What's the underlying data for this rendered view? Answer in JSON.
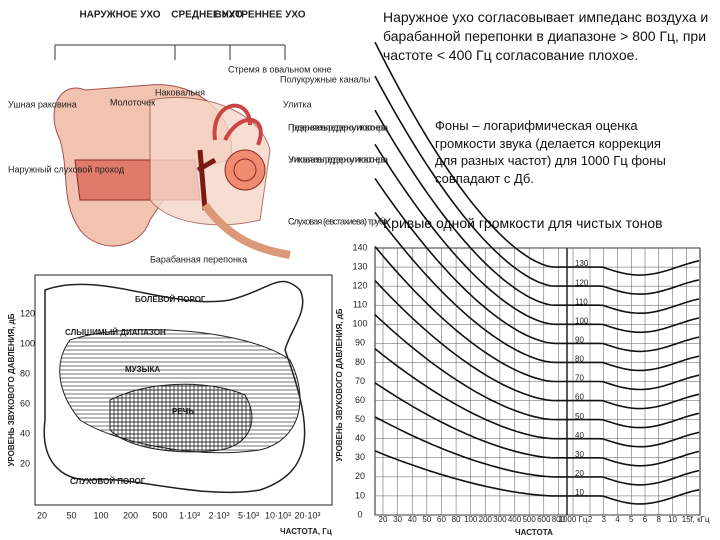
{
  "ear": {
    "headers": [
      "НАРУЖНОЕ УХО",
      "СРЕДНЕЕ УХО",
      "ВНУТРЕННЕЕ УХО"
    ],
    "labels": [
      "Ушная раковина",
      "Наружный слуховой проход",
      "Молоточек",
      "Наковальня",
      "Стремя в овальном окне",
      "Полукружные каналы",
      "Улитка",
      "Предверная ветвь преддверно-улиткового нерва",
      "Улитковая ветвь преддверно-улиткового нерва",
      "Слуховая (евстахиева) труба",
      "Барабанная перепонка"
    ]
  },
  "text": {
    "paragraph_1": "Наружное ухо согласовывает импеданс воздуха и барабанной перепонки в диапазоне > 800 Гц, при частоте < 400 Гц согласование плохое.",
    "paragraph_2": "Фоны – логарифмическая оценка громкости звука (делается коррекция для разных частот) для 1000 Гц фоны совпадают с Дб.",
    "heading": "Кривые одной громкости для чистых тонов"
  },
  "hearing_area": {
    "y_label": "УРОВЕНЬ ЗВУКОВОГО ДАВЛЕНИЯ, дБ",
    "x_label": "ЧАСТОТА, Гц",
    "yticks": [
      120,
      100,
      80,
      60,
      40,
      20
    ],
    "xticks": [
      "20",
      "50",
      "100",
      "200",
      "500",
      "1·10³",
      "2·10³",
      "5·10³",
      "10·10³",
      "20·10³"
    ],
    "regions": [
      "БОЛЕВОЙ ПОРОГ",
      "СЛЫШИМЫЙ ДИАПАЗОН",
      "МУЗЫКА",
      "РЕЧЬ",
      "СЛУХОВОЙ ПОРОГ"
    ]
  },
  "loudness": {
    "y_label": "УРОВЕНЬ ЗВУКОВОГО ДАВЛЕНИЯ, дБ",
    "x_label": "ЧАСТОТА",
    "yticks": [
      140,
      130,
      120,
      110,
      100,
      90,
      80,
      70,
      60,
      50,
      40,
      30,
      20,
      10,
      0
    ],
    "curve_labels": [
      130,
      120,
      110,
      100,
      90,
      80,
      70,
      60,
      50,
      40,
      30,
      20,
      10
    ],
    "xticks_hz": [
      "20",
      "30",
      "40",
      "50",
      "60",
      "80",
      "100",
      "200",
      "300",
      "400",
      "500",
      "600",
      "800",
      "1000 Гц"
    ],
    "xticks_khz": [
      "2",
      "3",
      "4",
      "5",
      "6",
      "8",
      "10",
      "15",
      "f, кГц"
    ]
  }
}
